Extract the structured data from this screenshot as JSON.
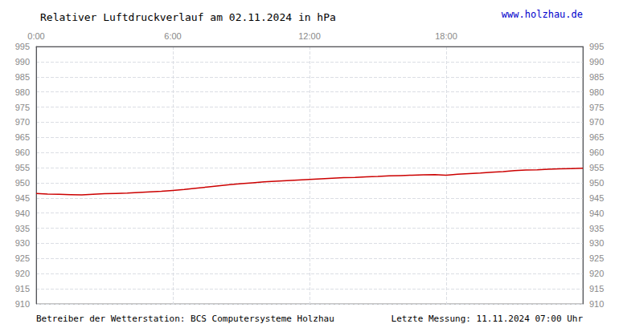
{
  "chart_data": {
    "type": "line",
    "title": "Relativer Luftdruckverlauf am 02.11.2024 in hPa",
    "annotations": [
      "www.holzhau.de",
      "Betreiber der Wetterstation: BCS Computersysteme Holzhau",
      "Letzte Messung: 11.11.2024 07:00 Uhr"
    ],
    "x": [
      0.0,
      0.5,
      1.0,
      1.5,
      2.0,
      2.5,
      3.0,
      3.5,
      4.0,
      4.5,
      5.0,
      5.5,
      6.0,
      6.5,
      7.0,
      7.5,
      8.0,
      8.5,
      9.0,
      9.5,
      10.0,
      10.5,
      11.0,
      11.5,
      12.0,
      12.5,
      13.0,
      13.5,
      14.0,
      14.5,
      15.0,
      15.5,
      16.0,
      16.5,
      17.0,
      17.5,
      18.0,
      18.5,
      19.0,
      19.5,
      20.0,
      20.5,
      21.0,
      21.5,
      22.0,
      22.5,
      23.0,
      23.5,
      24.0
    ],
    "values": [
      946.5,
      946.3,
      946.2,
      946.1,
      946.0,
      946.2,
      946.4,
      946.5,
      946.6,
      946.8,
      947.0,
      947.2,
      947.5,
      947.8,
      948.2,
      948.6,
      949.0,
      949.4,
      949.7,
      950.0,
      950.3,
      950.5,
      950.7,
      950.9,
      951.1,
      951.3,
      951.5,
      951.7,
      951.8,
      952.0,
      952.1,
      952.3,
      952.4,
      952.5,
      952.6,
      952.7,
      952.5,
      952.8,
      953.0,
      953.2,
      953.5,
      953.7,
      954.0,
      954.2,
      954.3,
      954.5,
      954.6,
      954.7,
      954.8
    ],
    "color": "#cc0000",
    "xlim": [
      0,
      24
    ],
    "xticks": [
      {
        "value": 0,
        "label": "0:00"
      },
      {
        "value": 6,
        "label": "6:00"
      },
      {
        "value": 12,
        "label": "12:00"
      },
      {
        "value": 18,
        "label": "18:00"
      }
    ],
    "ylim": [
      910,
      995
    ],
    "yticks": [
      910,
      915,
      920,
      925,
      930,
      935,
      940,
      945,
      950,
      955,
      960,
      965,
      970,
      975,
      980,
      985,
      990,
      995
    ],
    "grid": true
  }
}
